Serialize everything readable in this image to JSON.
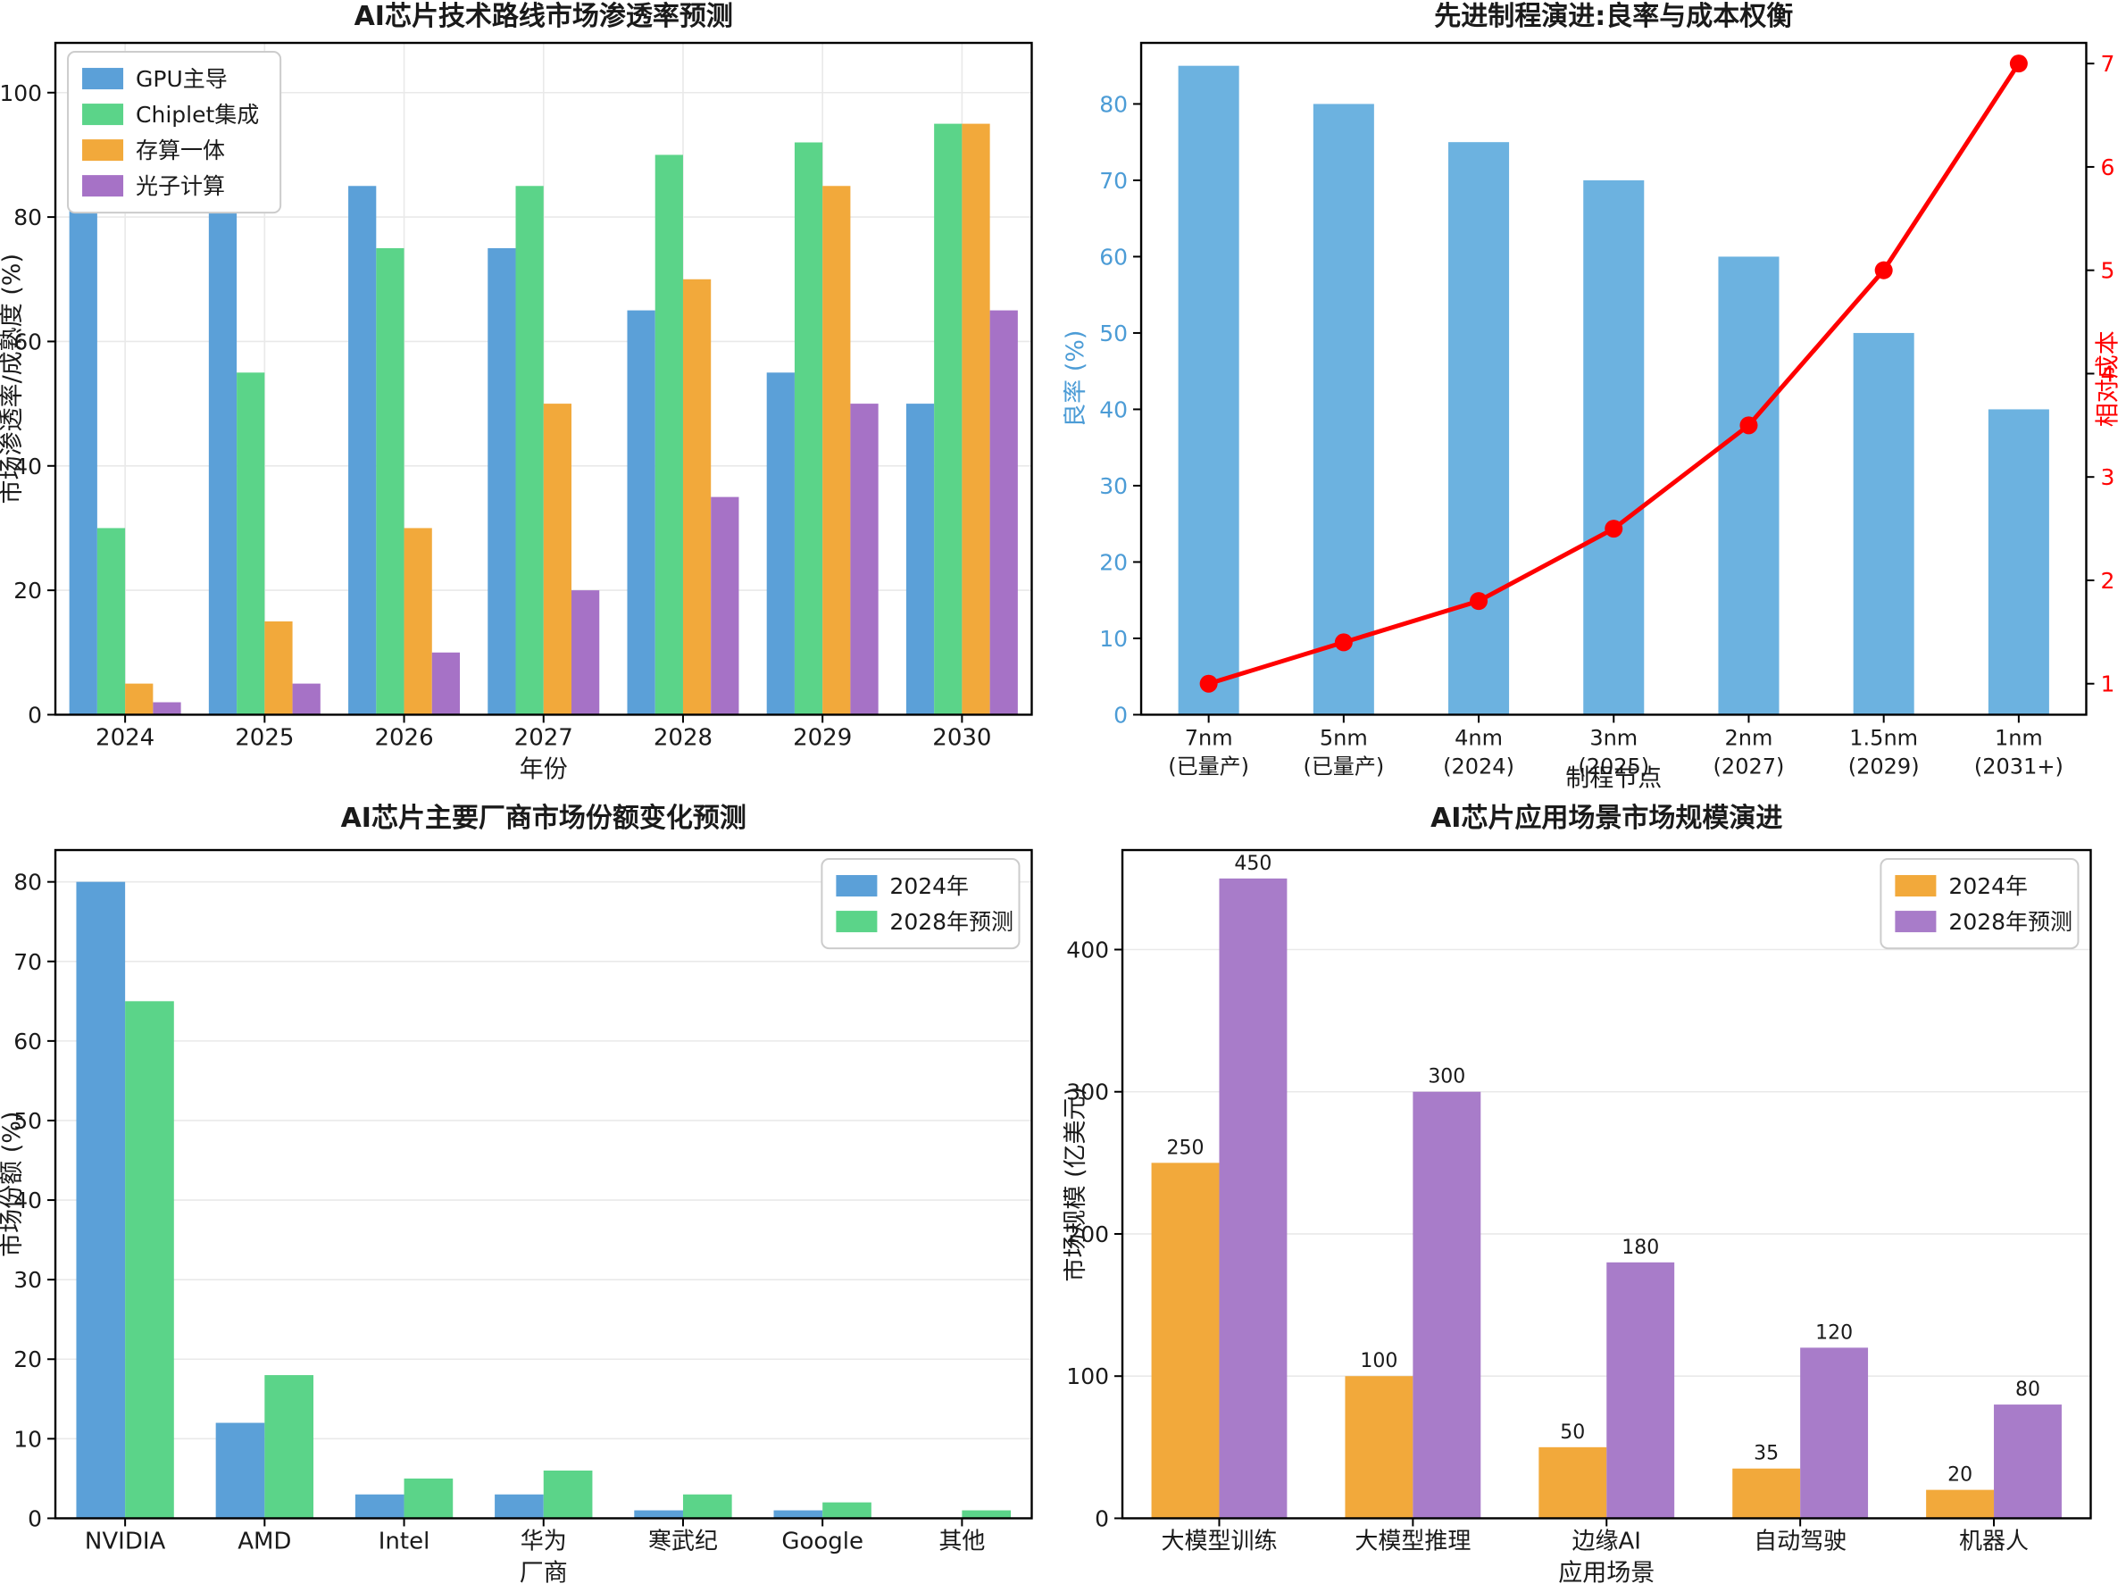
{
  "figure": {
    "background": "#FFFFFF",
    "grid_color": "#E9E9E9",
    "spine_color": "#000000",
    "text_color": "#1A1A1A",
    "legend_border_color": "#CCCCCC"
  },
  "chart_data": [
    {
      "id": "penetration",
      "type": "bar",
      "title": "AI芯片技术路线市场渗透率预测",
      "xlabel": "年份",
      "ylabel": "市场渗透率/成熟度 (%)",
      "categories": [
        "2024",
        "2025",
        "2026",
        "2027",
        "2028",
        "2029",
        "2030"
      ],
      "series": [
        {
          "name": "GPU主导",
          "color": "#5BA0D8",
          "values": [
            100,
            95,
            85,
            75,
            65,
            55,
            50
          ]
        },
        {
          "name": "Chiplet集成",
          "color": "#5BD489",
          "values": [
            30,
            55,
            75,
            85,
            90,
            92,
            95
          ]
        },
        {
          "name": "存算一体",
          "color": "#F2A93B",
          "values": [
            5,
            15,
            30,
            50,
            70,
            85,
            95
          ]
        },
        {
          "name": "光子计算",
          "color": "#A672C6",
          "values": [
            2,
            5,
            10,
            20,
            35,
            50,
            65
          ]
        }
      ],
      "ylim": [
        0,
        108
      ],
      "yticks": [
        0,
        20,
        40,
        60,
        80,
        100
      ],
      "grid": "both",
      "legend_position": "top-left",
      "value_labels": false
    },
    {
      "id": "process",
      "type": "bar-line",
      "title": "先进制程演进:良率与成本权衡",
      "xlabel": "制程节点",
      "ylabel": "良率 (%)",
      "axis_color": "#4C9CD6",
      "categories": [
        [
          "7nm",
          "(已量产)"
        ],
        [
          "5nm",
          "(已量产)"
        ],
        [
          "4nm",
          "(2024)"
        ],
        [
          "3nm",
          "(2025)"
        ],
        [
          "2nm",
          "(2027)"
        ],
        [
          "1.5nm",
          "(2029)"
        ],
        [
          "1nm",
          "(2031+)"
        ]
      ],
      "series": [
        {
          "name": "良率 (%)",
          "color": "#6CB2E0",
          "values": [
            85,
            80,
            75,
            70,
            60,
            50,
            40
          ]
        }
      ],
      "ylim": [
        0,
        88
      ],
      "yticks": [
        0,
        10,
        20,
        30,
        40,
        50,
        60,
        70,
        80
      ],
      "line": {
        "name": "相对成本",
        "color": "#FF0000",
        "values": [
          1,
          1.4,
          1.8,
          2.5,
          3.5,
          5,
          7
        ]
      },
      "right_axis": {
        "label": "相对成本",
        "color": "#FF0000",
        "lim": [
          0.7,
          7.2
        ],
        "ticks": [
          1,
          2,
          3,
          4,
          5,
          6,
          7
        ]
      },
      "grid": "none",
      "legend_position": "none",
      "value_labels": false
    },
    {
      "id": "vendors",
      "type": "bar",
      "title": "AI芯片主要厂商市场份额变化预测",
      "xlabel": "厂商",
      "ylabel": "市场份额 (%)",
      "categories": [
        "NVIDIA",
        "AMD",
        "Intel",
        "华为",
        "寒武纪",
        "Google",
        "其他"
      ],
      "series": [
        {
          "name": "2024年",
          "color": "#5BA0D8",
          "values": [
            80,
            12,
            3,
            3,
            1,
            1,
            0
          ]
        },
        {
          "name": "2028年预测",
          "color": "#5BD489",
          "values": [
            65,
            18,
            5,
            6,
            3,
            2,
            1
          ]
        }
      ],
      "ylim": [
        0,
        84
      ],
      "yticks": [
        0,
        10,
        20,
        30,
        40,
        50,
        60,
        70,
        80
      ],
      "grid": "horizontal",
      "legend_position": "top-right",
      "value_labels": false
    },
    {
      "id": "applications",
      "type": "bar",
      "title": "AI芯片应用场景市场规模演进",
      "xlabel": "应用场景",
      "ylabel": "市场规模 (亿美元)",
      "categories": [
        "大模型训练",
        "大模型推理",
        "边缘AI",
        "自动驾驶",
        "机器人"
      ],
      "series": [
        {
          "name": "2024年",
          "color": "#F2A93B",
          "values": [
            250,
            100,
            50,
            35,
            20
          ]
        },
        {
          "name": "2028年预测",
          "color": "#A87CC9",
          "values": [
            450,
            300,
            180,
            120,
            80
          ]
        }
      ],
      "ylim": [
        0,
        470
      ],
      "yticks": [
        0,
        100,
        200,
        300,
        400
      ],
      "grid": "horizontal",
      "legend_position": "top-right",
      "value_labels": true
    }
  ]
}
